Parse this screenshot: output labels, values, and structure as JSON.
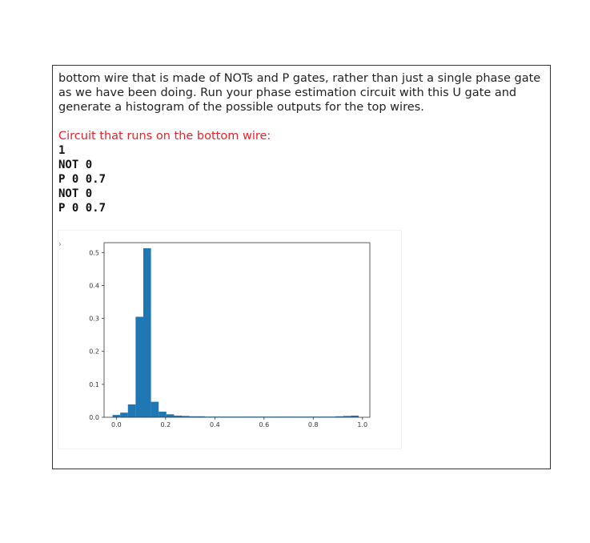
{
  "text": {
    "paragraph": "bottom wire that is made of NOTs and P gates, rather than just a single phase gate as we have been doing. Run your phase estimation circuit with this U gate and generate a histogram of the possible outputs for the top wires.",
    "circuit_heading": "Circuit that runs on the bottom wire:",
    "circuit_lines": [
      "1",
      "NOT 0",
      "P 0 0.7",
      "NOT 0",
      "P 0 0.7"
    ]
  },
  "output": {
    "prompt_glyph": "›"
  },
  "colors": {
    "heading": "#e8212a",
    "bars": "#1f77b4"
  },
  "chart_data": {
    "type": "bar",
    "title": "",
    "xlabel": "",
    "ylabel": "",
    "xlim": [
      -0.05,
      1.03
    ],
    "ylim": [
      0,
      0.53
    ],
    "xticks": [
      "0.0",
      "0.2",
      "0.4",
      "0.6",
      "0.8",
      "1.0"
    ],
    "yticks": [
      "0.0",
      "0.1",
      "0.2",
      "0.3",
      "0.4",
      "0.5"
    ],
    "bin_width": 0.03125,
    "bins_start": [
      -0.015625,
      0.015625,
      0.046875,
      0.078125,
      0.109375,
      0.140625,
      0.171875,
      0.203125,
      0.234375,
      0.265625,
      0.296875,
      0.328125,
      0.359375,
      0.390625,
      0.421875,
      0.453125,
      0.484375,
      0.515625,
      0.546875,
      0.578125,
      0.609375,
      0.640625,
      0.671875,
      0.703125,
      0.734375,
      0.765625,
      0.796875,
      0.828125,
      0.859375,
      0.890625,
      0.921875,
      0.953125
    ],
    "values": [
      0.007,
      0.014,
      0.039,
      0.305,
      0.513,
      0.047,
      0.017,
      0.009,
      0.005,
      0.004,
      0.003,
      0.003,
      0.002,
      0.002,
      0.002,
      0.002,
      0.002,
      0.002,
      0.002,
      0.002,
      0.002,
      0.002,
      0.002,
      0.002,
      0.002,
      0.002,
      0.002,
      0.002,
      0.002,
      0.003,
      0.004,
      0.005
    ]
  }
}
